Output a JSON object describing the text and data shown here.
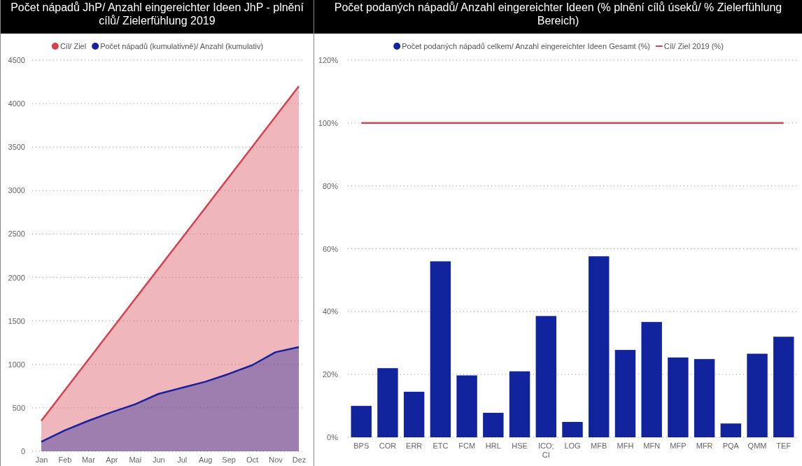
{
  "chart_data": [
    {
      "type": "area",
      "title": "Počet nápadů JhP/ Anzahl eingereichter Ideen JhP - plnění cílů/ Zielerfühlung 2019",
      "categories": [
        "Jan",
        "Feb",
        "Mar",
        "Apr",
        "Mai",
        "Jun",
        "Jul",
        "Aug",
        "Sep",
        "Oct",
        "Nov",
        "Dez"
      ],
      "series": [
        {
          "name": "Cíl/ Ziel",
          "color": "#d4424e",
          "values": [
            350,
            700,
            1050,
            1400,
            1750,
            2100,
            2450,
            2800,
            3150,
            3500,
            3850,
            4200
          ]
        },
        {
          "name": "Počet nápadů (kumulativně)/ Anzahl (kumulativ)",
          "color": "#1a1f9c",
          "values": [
            110,
            240,
            350,
            450,
            540,
            660,
            730,
            800,
            890,
            990,
            1140,
            1200
          ]
        }
      ],
      "ylim": [
        0,
        4500
      ],
      "yticks": [
        0,
        500,
        1000,
        1500,
        2000,
        2500,
        3000,
        3500,
        4000,
        4500
      ],
      "grid": "y",
      "legend": "top"
    },
    {
      "type": "bar",
      "title": "Počet podaných nápadů/ Anzahl eingereichter Ideen (% plnění cílů úseků/ % Zielerfühlung Bereich)",
      "categories": [
        "BPS",
        "COR",
        "ERR",
        "ETC",
        "FCM",
        "HRL",
        "HSE",
        "ICO; CI",
        "LOG",
        "MFB",
        "MFH",
        "MFN",
        "MFP",
        "MFR",
        "PQA",
        "QMM",
        "TEF"
      ],
      "series": [
        {
          "name": "Počet podaných nápadů celkem/ Anzahl eingereichter Ideen Gesamt (%)",
          "type": "bar",
          "color": "#12239e",
          "values": [
            10,
            22,
            14.5,
            56,
            19.7,
            7.8,
            21,
            38.6,
            4.9,
            57.6,
            27.8,
            36.7,
            25.4,
            24.9,
            4.4,
            26.6,
            32
          ]
        },
        {
          "name": "Cíl/ Ziel 2019 (%)",
          "type": "line",
          "color": "#d64550",
          "values": [
            100,
            100,
            100,
            100,
            100,
            100,
            100,
            100,
            100,
            100,
            100,
            100,
            100,
            100,
            100,
            100,
            100
          ]
        }
      ],
      "ylim": [
        0,
        120
      ],
      "yticks": [
        {
          "value": 0,
          "label": "0%"
        },
        {
          "value": 20,
          "label": "20%"
        },
        {
          "value": 40,
          "label": "40%"
        },
        {
          "value": 60,
          "label": "60%"
        },
        {
          "value": 80,
          "label": "80%"
        },
        {
          "value": 100,
          "label": "100%"
        },
        {
          "value": 120,
          "label": "120%"
        }
      ],
      "grid": "y",
      "legend": "top"
    }
  ]
}
